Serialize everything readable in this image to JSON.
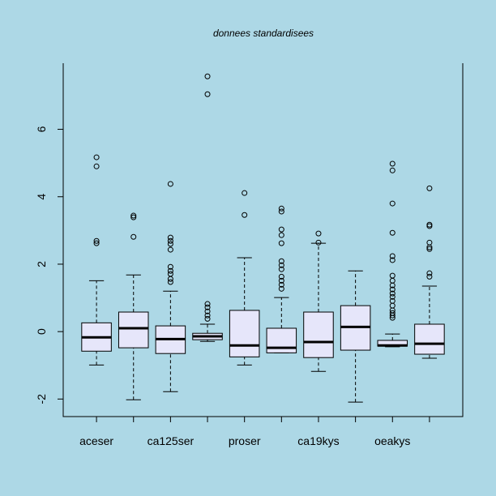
{
  "chart_data": {
    "type": "boxplot",
    "title": "donnees standardisees",
    "categories": [
      "aceser",
      null,
      "ca125ser",
      null,
      "proser",
      null,
      "ca19kys",
      null,
      "oeakys",
      null
    ],
    "ylim": [
      -2.52,
      7.96
    ],
    "yticks": [
      -2,
      0,
      2,
      4,
      6
    ],
    "background": "#add8e6",
    "box_color": "#e6e6fa",
    "boxes": [
      {
        "min": -0.99,
        "q1": -0.58,
        "median": -0.17,
        "q3": 0.26,
        "max": 1.51,
        "outliers": [
          5.17,
          4.9,
          2.69,
          2.62
        ]
      },
      {
        "min": -2.02,
        "q1": -0.48,
        "median": 0.1,
        "q3": 0.58,
        "max": 1.68,
        "outliers": [
          3.44,
          3.39,
          2.81
        ]
      },
      {
        "min": -1.78,
        "q1": -0.65,
        "median": -0.22,
        "q3": 0.17,
        "max": 1.2,
        "outliers": [
          4.38,
          2.79,
          2.69,
          2.6,
          2.43,
          1.92,
          1.8,
          1.71,
          1.56,
          1.47
        ]
      },
      {
        "min": -0.29,
        "q1": -0.24,
        "median": -0.14,
        "q3": -0.05,
        "max": 0.22,
        "outliers": [
          7.57,
          7.04,
          0.82,
          0.72,
          0.6,
          0.48,
          0.38
        ]
      },
      {
        "min": -0.99,
        "q1": -0.75,
        "median": -0.41,
        "q3": 0.63,
        "max": 2.19,
        "outliers": [
          4.11,
          3.46
        ]
      },
      {
        "min": -0.63,
        "q1": -0.63,
        "median": -0.48,
        "q3": 0.1,
        "max": 1.01,
        "outliers": [
          3.65,
          3.56,
          3.03,
          2.86,
          2.62,
          2.09,
          1.97,
          1.85,
          1.63,
          1.51,
          1.39,
          1.27
        ]
      },
      {
        "min": -1.18,
        "q1": -0.77,
        "median": -0.31,
        "q3": 0.58,
        "max": 2.62,
        "outliers": [
          2.91,
          2.64
        ]
      },
      {
        "min": -2.09,
        "q1": -0.55,
        "median": 0.14,
        "q3": 0.77,
        "max": 1.8,
        "outliers": []
      },
      {
        "min": -0.45,
        "q1": -0.43,
        "median": -0.41,
        "q3": -0.26,
        "max": -0.07,
        "outliers": [
          4.98,
          4.78,
          3.8,
          2.93,
          2.24,
          2.12,
          1.66,
          1.51,
          1.37,
          1.25,
          1.13,
          1.03,
          0.91,
          0.77,
          0.63,
          0.55,
          0.48,
          0.41
        ]
      },
      {
        "min": -0.79,
        "q1": -0.67,
        "median": -0.36,
        "q3": 0.22,
        "max": 1.35,
        "outliers": [
          4.25,
          3.17,
          3.13,
          2.64,
          2.5,
          2.45,
          1.73,
          1.63
        ]
      }
    ]
  }
}
